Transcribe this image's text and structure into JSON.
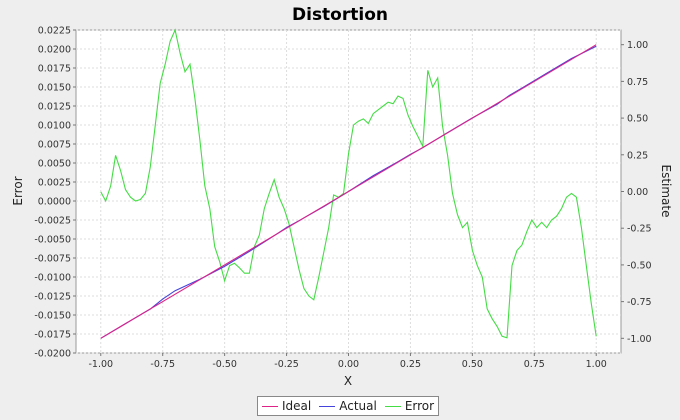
{
  "chart_data": {
    "type": "line",
    "title": "Distortion",
    "xlabel": "X",
    "ylabel_left": "Error",
    "ylabel_right": "Estimate",
    "xlim": [
      -1.1,
      1.1
    ],
    "ylim_left": [
      -0.02,
      0.0225
    ],
    "ylim_right": [
      -1.1,
      1.1
    ],
    "xticks": [
      -1.0,
      -0.75,
      -0.5,
      -0.25,
      0.0,
      0.25,
      0.5,
      0.75,
      1.0
    ],
    "xtick_labels": [
      "-1.00",
      "-0.75",
      "-0.50",
      "-0.25",
      "0.00",
      "0.25",
      "0.50",
      "0.75",
      "1.00"
    ],
    "yticks_left": [
      -0.02,
      -0.0175,
      -0.015,
      -0.0125,
      -0.01,
      -0.0075,
      -0.005,
      -0.0025,
      0.0,
      0.0025,
      0.005,
      0.0075,
      0.01,
      0.0125,
      0.015,
      0.0175,
      0.02,
      0.0225
    ],
    "ytick_labels_left": [
      "-0.0200",
      "-0.0175",
      "-0.0150",
      "-0.0125",
      "-0.0100",
      "-0.0075",
      "-0.0050",
      "-0.0025",
      "0.0000",
      "0.0025",
      "0.0050",
      "0.0075",
      "0.0100",
      "0.0125",
      "0.0150",
      "0.0175",
      "0.0200",
      "0.0225"
    ],
    "yticks_right": [
      -1.0,
      -0.75,
      -0.5,
      -0.25,
      0.0,
      0.25,
      0.5,
      0.75,
      1.0
    ],
    "ytick_labels_right": [
      "-1.00",
      "-0.75",
      "-0.50",
      "-0.25",
      "0.00",
      "0.25",
      "0.50",
      "0.75",
      "1.00"
    ],
    "grid": true,
    "legend_position": "bottom",
    "series": [
      {
        "name": "Ideal",
        "axis": "right",
        "color": "#dd2288",
        "x": [
          -1.0,
          1.0
        ],
        "y": [
          -1.0,
          1.0
        ]
      },
      {
        "name": "Actual",
        "axis": "right",
        "color": "#4444dd",
        "x": [
          -1.0,
          -0.9,
          -0.8,
          -0.75,
          -0.7,
          -0.6,
          -0.5,
          -0.4,
          -0.3,
          -0.25,
          -0.2,
          -0.1,
          0.0,
          0.1,
          0.2,
          0.25,
          0.3,
          0.4,
          0.5,
          0.6,
          0.65,
          0.7,
          0.8,
          0.9,
          1.0
        ],
        "y": [
          -1.0,
          -0.9,
          -0.8,
          -0.733,
          -0.676,
          -0.597,
          -0.51,
          -0.408,
          -0.301,
          -0.245,
          -0.199,
          -0.103,
          0.0,
          0.108,
          0.203,
          0.253,
          0.298,
          0.401,
          0.501,
          0.594,
          0.655,
          0.704,
          0.806,
          0.906,
          0.99
        ]
      },
      {
        "name": "Error",
        "axis": "left",
        "color": "#44dd44",
        "x": [
          -1.0,
          -0.98,
          -0.96,
          -0.94,
          -0.92,
          -0.9,
          -0.88,
          -0.86,
          -0.84,
          -0.82,
          -0.8,
          -0.78,
          -0.76,
          -0.74,
          -0.72,
          -0.7,
          -0.68,
          -0.66,
          -0.64,
          -0.62,
          -0.6,
          -0.58,
          -0.56,
          -0.54,
          -0.52,
          -0.5,
          -0.48,
          -0.46,
          -0.44,
          -0.42,
          -0.4,
          -0.38,
          -0.36,
          -0.34,
          -0.32,
          -0.3,
          -0.28,
          -0.26,
          -0.24,
          -0.22,
          -0.2,
          -0.18,
          -0.16,
          -0.14,
          -0.12,
          -0.1,
          -0.08,
          -0.06,
          -0.04,
          -0.02,
          0.0,
          0.02,
          0.04,
          0.06,
          0.08,
          0.1,
          0.12,
          0.14,
          0.16,
          0.18,
          0.2,
          0.22,
          0.24,
          0.26,
          0.28,
          0.3,
          0.32,
          0.34,
          0.36,
          0.38,
          0.4,
          0.42,
          0.44,
          0.46,
          0.48,
          0.5,
          0.52,
          0.54,
          0.56,
          0.58,
          0.6,
          0.62,
          0.64,
          0.66,
          0.68,
          0.7,
          0.72,
          0.74,
          0.76,
          0.78,
          0.8,
          0.82,
          0.84,
          0.86,
          0.88,
          0.9,
          0.92,
          0.94,
          0.96,
          0.98,
          1.0
        ],
        "y": [
          0.0012,
          0.0,
          0.002,
          0.006,
          0.004,
          0.0015,
          0.0005,
          0.0,
          0.0002,
          0.001,
          0.0045,
          0.01,
          0.0155,
          0.018,
          0.021,
          0.0225,
          0.0195,
          0.017,
          0.018,
          0.0135,
          0.008,
          0.002,
          -0.001,
          -0.006,
          -0.008,
          -0.0105,
          -0.0085,
          -0.0082,
          -0.0088,
          -0.0095,
          -0.0095,
          -0.006,
          -0.0045,
          -0.001,
          0.001,
          0.0028,
          0.0005,
          -0.001,
          -0.003,
          -0.006,
          -0.009,
          -0.0115,
          -0.0125,
          -0.013,
          -0.01,
          -0.0068,
          -0.0035,
          0.0008,
          0.0005,
          0.001,
          0.0062,
          0.01,
          0.0105,
          0.0108,
          0.0102,
          0.0115,
          0.012,
          0.0125,
          0.013,
          0.0128,
          0.0138,
          0.0135,
          0.0113,
          0.0098,
          0.0085,
          0.0072,
          0.0172,
          0.015,
          0.0162,
          0.0098,
          0.006,
          0.001,
          -0.0018,
          -0.0035,
          -0.0028,
          -0.0065,
          -0.0085,
          -0.01,
          -0.0142,
          -0.0155,
          -0.0165,
          -0.0178,
          -0.018,
          -0.0085,
          -0.0065,
          -0.0058,
          -0.004,
          -0.0025,
          -0.0035,
          -0.0028,
          -0.0035,
          -0.0025,
          -0.002,
          -0.001,
          0.0005,
          0.001,
          0.0005,
          -0.0035,
          -0.0085,
          -0.0135,
          -0.0178
        ]
      }
    ]
  }
}
